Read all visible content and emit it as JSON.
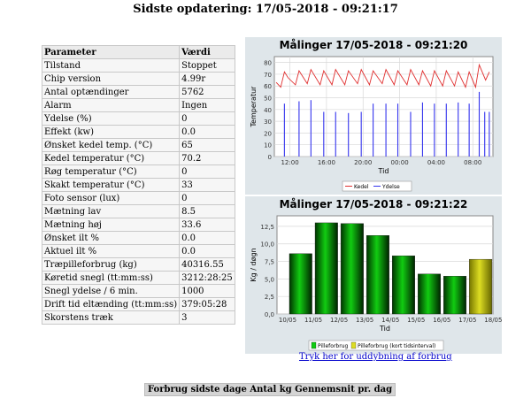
{
  "header": {
    "title": "Sidste opdatering: 17/05-2018 - 09:21:17"
  },
  "table": {
    "col_param": "Parameter",
    "col_value": "Værdi",
    "rows": [
      {
        "label": "Tilstand",
        "value": "Stoppet"
      },
      {
        "label": "Chip version",
        "value": "4.99r"
      },
      {
        "label": "Antal optændinger",
        "value": "5762"
      },
      {
        "label": "Alarm",
        "value": "Ingen"
      },
      {
        "label": "Ydelse (%)",
        "value": "0"
      },
      {
        "label": "Effekt (kw)",
        "value": "0.0"
      },
      {
        "label": "Ønsket kedel temp. (°C)",
        "value": "65"
      },
      {
        "label": "Kedel temperatur (°C)",
        "value": "70.2"
      },
      {
        "label": "Røg temperatur (°C)",
        "value": "0"
      },
      {
        "label": "Skakt temperatur (°C)",
        "value": "33"
      },
      {
        "label": "Foto sensor (lux)",
        "value": "0"
      },
      {
        "label": "Mætning lav",
        "value": "8.5"
      },
      {
        "label": "Mætning høj",
        "value": "33.6"
      },
      {
        "label": "Ønsket ilt %",
        "value": "0.0"
      },
      {
        "label": "Aktuel ilt %",
        "value": "0.0"
      },
      {
        "label": "Træpilleforbrug (kg)",
        "value": "40316.55"
      },
      {
        "label": "Køretid snegl (tt:mm:ss)",
        "value": "3212:28:25"
      },
      {
        "label": "Snegl ydelse / 6 min.",
        "value": "1000"
      },
      {
        "label": "Drift tid eltænding (tt:mm:ss)",
        "value": "379:05:28"
      },
      {
        "label": "Skorstens træk",
        "value": "3"
      }
    ]
  },
  "colors": {
    "kedel": "#e03030",
    "ydelse": "#3333ee",
    "bar_green": "#11cc11",
    "bar_yellow": "#dddd22"
  },
  "chart_data": [
    {
      "type": "line",
      "title": "Målinger 17/05-2018 - 09:21:20",
      "xlabel": "Tid",
      "ylabel": "Temperatur",
      "ylim": [
        0,
        85
      ],
      "yticks": [
        "0",
        "10",
        "20",
        "30",
        "40",
        "50",
        "60",
        "70",
        "80"
      ],
      "xticks": [
        "12:00",
        "16:00",
        "20:00",
        "00:00",
        "04:00",
        "08:00"
      ],
      "x_hours_at_ticks": [
        12,
        16,
        20,
        24,
        28,
        32
      ],
      "xlim_hours": [
        10.3,
        34.2
      ],
      "grid": true,
      "legend": "bottom",
      "series": [
        {
          "name": "Kedel",
          "x_hours": [
            10.5,
            11.0,
            11.4,
            11.8,
            12.6,
            13.0,
            13.9,
            14.3,
            15.3,
            15.7,
            16.6,
            17.0,
            18.0,
            18.4,
            19.4,
            19.8,
            20.7,
            21.1,
            22.1,
            22.5,
            23.4,
            23.8,
            24.8,
            25.2,
            26.1,
            26.5,
            27.4,
            27.8,
            28.7,
            29.1,
            30.0,
            30.4,
            31.2,
            31.6,
            32.3,
            32.7,
            33.4,
            33.8
          ],
          "values": [
            63,
            59,
            72,
            67,
            61,
            73,
            62,
            74,
            61,
            73,
            61,
            74,
            61,
            73,
            62,
            74,
            61,
            73,
            62,
            74,
            61,
            73,
            61,
            74,
            61,
            73,
            60,
            73,
            60,
            73,
            60,
            72,
            59,
            72,
            59,
            78,
            65,
            72
          ]
        },
        {
          "name": "Ydelse",
          "spikes_x_hours": [
            11.4,
            13.0,
            14.3,
            15.7,
            17.0,
            18.4,
            19.8,
            21.1,
            22.5,
            23.8,
            25.2,
            26.5,
            27.8,
            29.1,
            30.4,
            31.6,
            32.7,
            33.3,
            33.8
          ],
          "spike_values": [
            45,
            47,
            48,
            38,
            38,
            37,
            38,
            45,
            45,
            45,
            38,
            46,
            45,
            45,
            46,
            45,
            55,
            38,
            38
          ]
        }
      ]
    },
    {
      "type": "bar",
      "title": "Målinger 17/05-2018 - 09:21:22",
      "xlabel": "Tid",
      "ylabel": "Kg / døgn",
      "ylim": [
        0,
        14
      ],
      "yticks": [
        "0,0",
        "2,5",
        "5,0",
        "7,5",
        "10,0",
        "12,5"
      ],
      "categories": [
        "10/05",
        "11/05",
        "12/05",
        "13/05",
        "14/05",
        "15/05",
        "16/05",
        "17/05",
        "18/05"
      ],
      "series": [
        {
          "name": "Pilleforbrug",
          "values": [
            8.6,
            13.0,
            12.9,
            11.2,
            8.3,
            5.7,
            5.4,
            null,
            null
          ]
        },
        {
          "name": "Pilleforbrug (kort tidsinterval)",
          "values": [
            null,
            null,
            null,
            null,
            null,
            null,
            null,
            7.8,
            null
          ]
        }
      ],
      "grid": true,
      "legend": "bottom"
    }
  ],
  "link_text": "Tryk her for uddybning af forbrug",
  "footer": {
    "text": "Forbrug sidste dage Antal kg Gennemsnit pr. dag"
  }
}
